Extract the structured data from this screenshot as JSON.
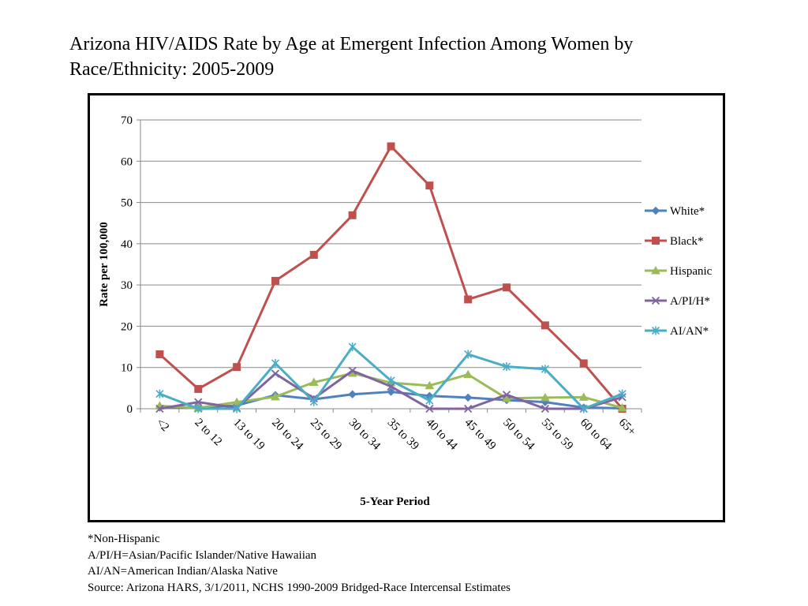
{
  "title_line1": "Arizona HIV/AIDS Rate by Age at Emergent Infection Among Women by",
  "title_line2": "Race/Ethnicity: 2005-2009",
  "chart_data": {
    "type": "line",
    "title": "Arizona HIV/AIDS Rate by Age at Emergent Infection Among Women by Race/Ethnicity: 2005-2009",
    "xlabel": "5-Year Period",
    "ylabel": "Rate per 100,000",
    "ylim": [
      0,
      70
    ],
    "yticks": [
      0,
      10,
      20,
      30,
      40,
      50,
      60,
      70
    ],
    "grid": true,
    "legend_position": "right",
    "categories": [
      "<2",
      "2 to 12",
      "13 to 19",
      "20 to 24",
      "25 to 29",
      "30 to 34",
      "35 to 39",
      "40 to 44",
      "45 to 49",
      "50 to 54",
      "55 to 59",
      "60 to 64",
      "65+"
    ],
    "series": [
      {
        "name": "White*",
        "color": "#4f81bd",
        "marker": "diamond",
        "values": [
          0.3,
          0.3,
          0.8,
          3.3,
          2.3,
          3.5,
          4.1,
          3.1,
          2.7,
          2.1,
          1.6,
          0.3,
          0.1
        ]
      },
      {
        "name": "Black*",
        "color": "#c0504d",
        "marker": "square",
        "values": [
          13.2,
          4.8,
          10.1,
          31.0,
          37.3,
          46.9,
          63.6,
          54.1,
          26.5,
          29.4,
          20.2,
          11.0,
          0.0
        ]
      },
      {
        "name": "Hispanic",
        "color": "#9bbb59",
        "marker": "triangle",
        "values": [
          0.7,
          0.2,
          1.6,
          2.9,
          6.4,
          8.6,
          6.3,
          5.6,
          8.3,
          2.5,
          2.7,
          2.8,
          0.2
        ]
      },
      {
        "name": "A/PI/H*",
        "color": "#8064a2",
        "marker": "x",
        "values": [
          0.0,
          1.6,
          0.2,
          8.5,
          2.5,
          9.2,
          5.4,
          0.0,
          0.0,
          3.4,
          0.0,
          0.0,
          2.8
        ]
      },
      {
        "name": "AI/AN*",
        "color": "#4bacc6",
        "marker": "star",
        "values": [
          3.6,
          0.0,
          0.0,
          11.0,
          1.7,
          15.0,
          6.8,
          2.0,
          13.2,
          10.2,
          9.6,
          0.0,
          3.6
        ]
      }
    ]
  },
  "notes": [
    "*Non-Hispanic",
    "A/PI/H=Asian/Pacific Islander/Native Hawaiian",
    "AI/AN=American Indian/Alaska Native",
    "Source: Arizona HARS, 3/1/2011, NCHS 1990-2009 Bridged-Race Intercensal Estimates"
  ]
}
